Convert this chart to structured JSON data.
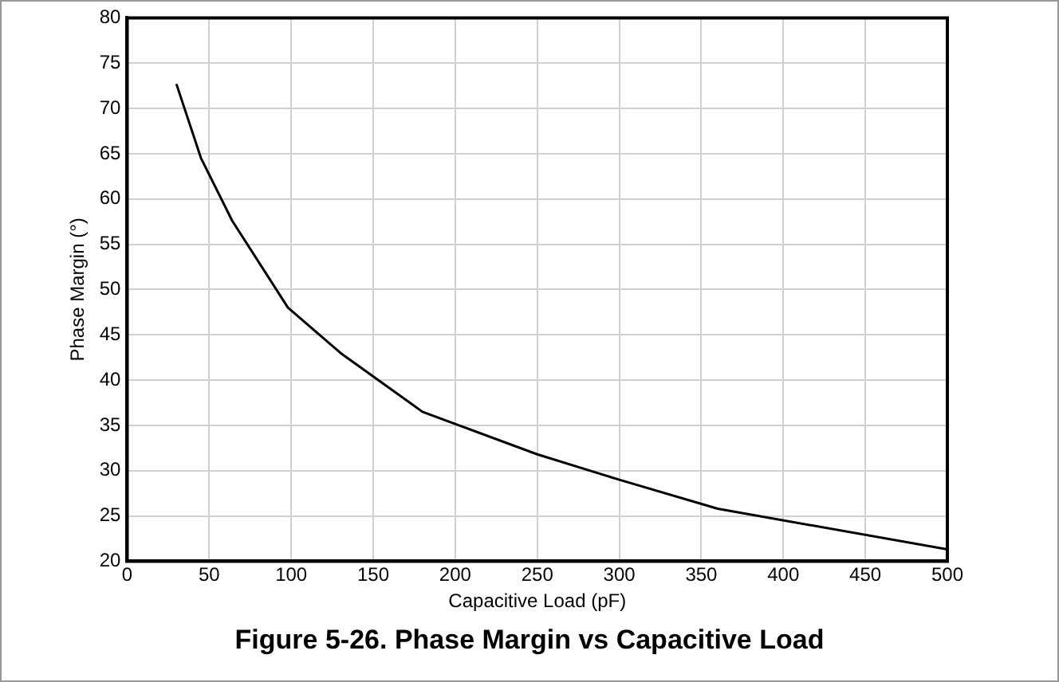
{
  "chart_data": {
    "type": "line",
    "title": "Figure 5-26. Phase Margin vs Capacitive Load",
    "xlabel": "Capacitive Load (pF)",
    "ylabel": "Phase Margin (°)",
    "x": [
      30,
      45,
      64,
      98,
      130,
      180,
      250,
      300,
      360,
      500
    ],
    "series": [
      {
        "color": "#000000",
        "values": [
          72.7,
          64.5,
          57.6,
          48,
          43,
          36.5,
          31.8,
          29,
          25.8,
          21.3
        ]
      }
    ],
    "xlim": [
      0,
      500
    ],
    "xticks": [
      0,
      50,
      100,
      150,
      200,
      250,
      300,
      350,
      400,
      450,
      500
    ],
    "ylim": [
      20,
      80
    ],
    "yticks": [
      20,
      25,
      30,
      35,
      40,
      45,
      50,
      55,
      60,
      65,
      70,
      75,
      80
    ],
    "grid": true,
    "legend": false,
    "marker": "none",
    "line_style": "solid"
  }
}
